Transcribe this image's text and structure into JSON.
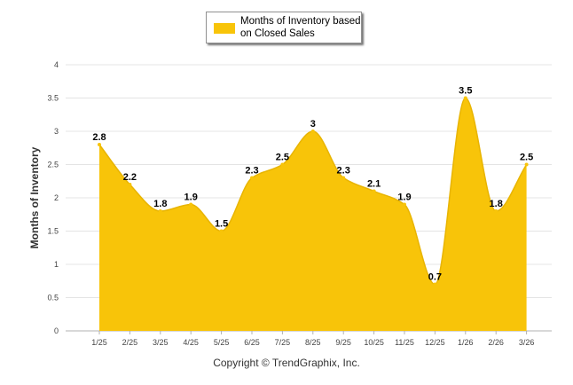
{
  "chart_data": {
    "type": "area",
    "title": "",
    "xlabel": "",
    "ylabel": "Months of Inventory",
    "categories": [
      "1/25",
      "2/25",
      "3/25",
      "4/25",
      "5/25",
      "6/25",
      "7/25",
      "8/25",
      "9/25",
      "10/25",
      "11/25",
      "12/25",
      "1/26",
      "2/26",
      "3/26"
    ],
    "series": [
      {
        "name": "Months of Inventory based on Closed Sales",
        "values": [
          2.8,
          2.2,
          1.8,
          1.9,
          1.5,
          2.3,
          2.5,
          3,
          2.3,
          2.1,
          1.9,
          0.7,
          3.5,
          1.8,
          2.5
        ],
        "color": "#F8C409"
      }
    ],
    "ylim": [
      0,
      4
    ],
    "yticks": [
      "0",
      "0.5",
      "1",
      "1.5",
      "2",
      "2.5",
      "3",
      "3.5",
      "4"
    ],
    "grid": true,
    "legend": "top-center"
  },
  "legend": {
    "label": "Months of Inventory based on Closed Sales"
  },
  "footer": {
    "copyright": "Copyright © TrendGraphix, Inc."
  }
}
